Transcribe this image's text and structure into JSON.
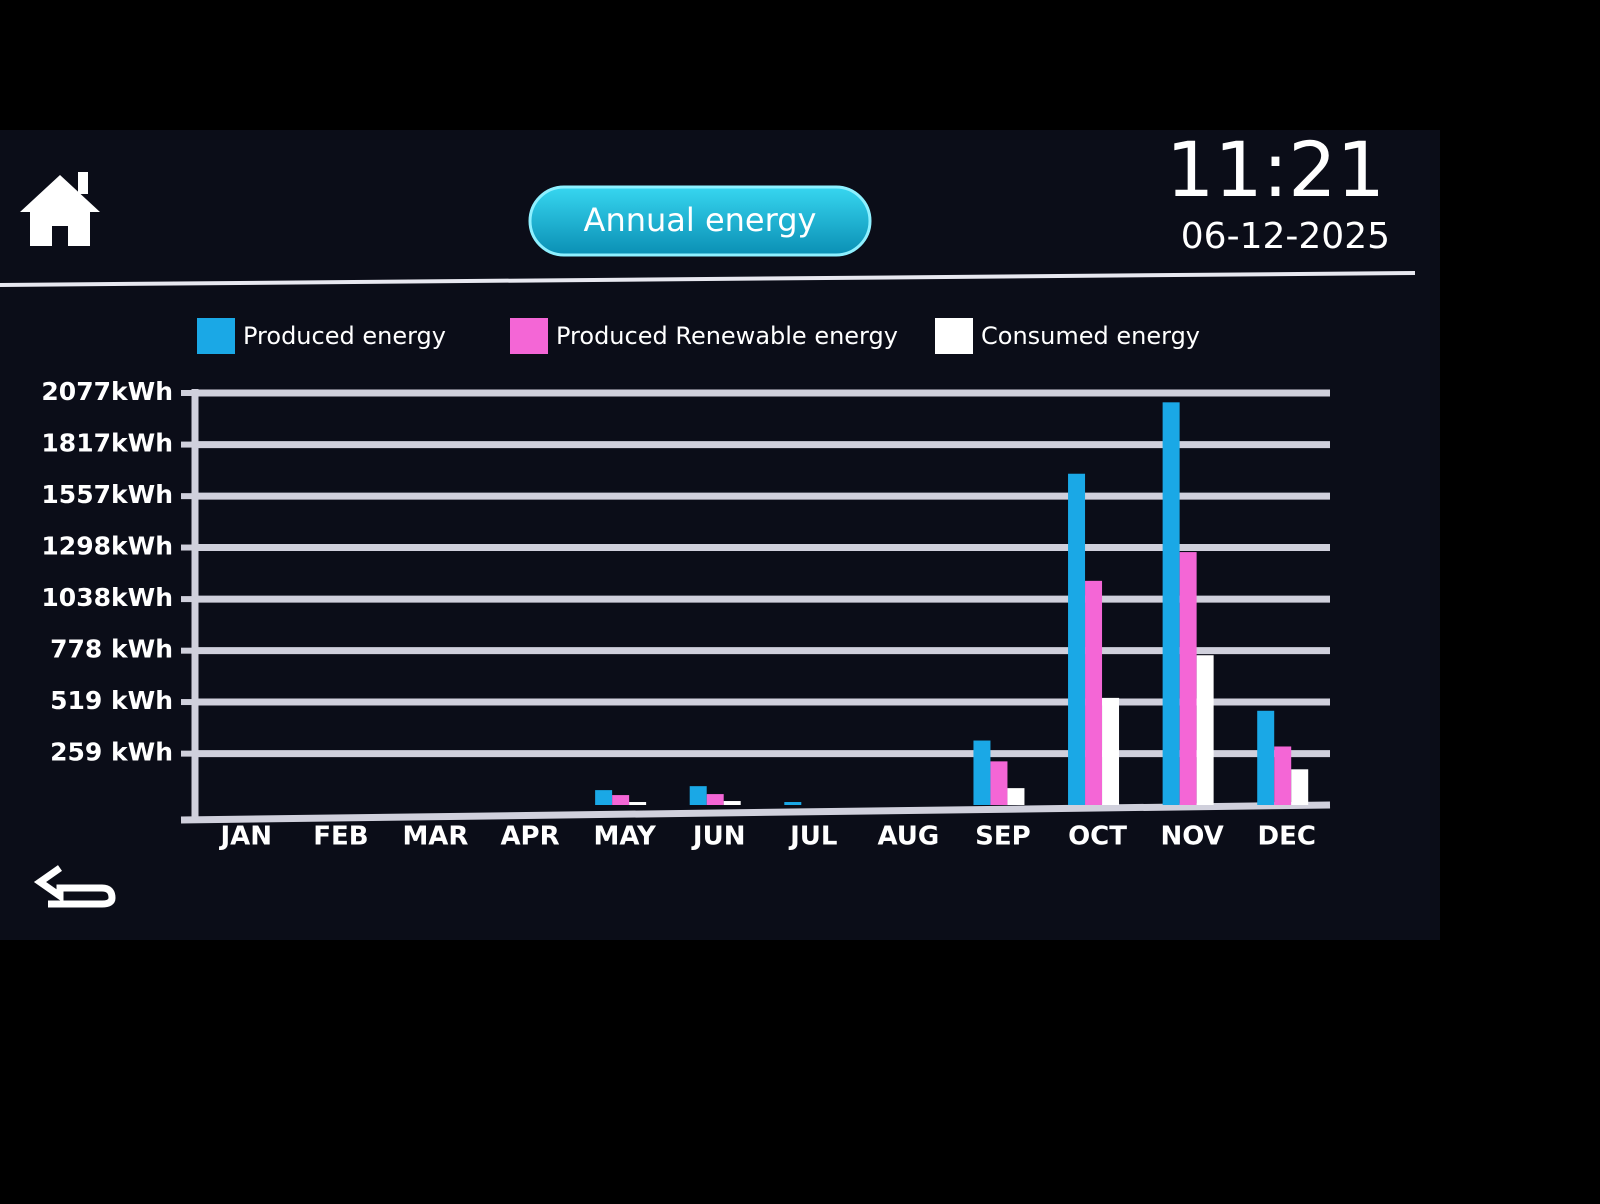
{
  "header": {
    "title": "Annual energy",
    "time": "11:21",
    "date": "06-12-2025"
  },
  "chart_data": {
    "type": "bar",
    "categories": [
      "JAN",
      "FEB",
      "MAR",
      "APR",
      "MAY",
      "JUN",
      "JUL",
      "AUG",
      "SEP",
      "OCT",
      "NOV",
      "DEC"
    ],
    "series": [
      {
        "name": "Produced energy",
        "color": "#1aa8e6",
        "values": [
          0,
          0,
          0,
          0,
          75,
          95,
          15,
          0,
          325,
          1670,
          2030,
          475
        ]
      },
      {
        "name": "Produced Renewable energy",
        "color": "#f466d6",
        "values": [
          0,
          0,
          0,
          0,
          50,
          55,
          0,
          0,
          220,
          1130,
          1275,
          295
        ]
      },
      {
        "name": "Consumed energy",
        "color": "#ffffff",
        "values": [
          0,
          0,
          0,
          0,
          15,
          20,
          0,
          0,
          85,
          540,
          755,
          180
        ]
      }
    ],
    "ylim": [
      0,
      2077
    ],
    "yticks": [
      {
        "value": 259,
        "label": "259 kWh"
      },
      {
        "value": 519,
        "label": "519 kWh"
      },
      {
        "value": 778,
        "label": "778 kWh"
      },
      {
        "value": 1038,
        "label": "1038kWh"
      },
      {
        "value": 1298,
        "label": "1298kWh"
      },
      {
        "value": 1557,
        "label": "1557kWh"
      },
      {
        "value": 1817,
        "label": "1817kWh"
      },
      {
        "value": 2077,
        "label": "2077kWh"
      }
    ],
    "grid": true
  }
}
